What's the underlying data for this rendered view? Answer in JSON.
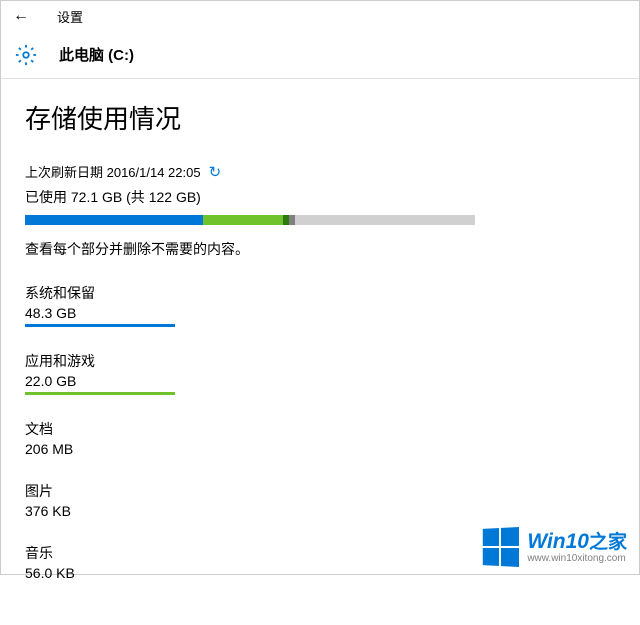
{
  "nav": {
    "back_symbol": "←",
    "title": "设置"
  },
  "header": {
    "title": "此电脑 (C:)"
  },
  "page": {
    "title": "存储使用情况",
    "refresh_label": "上次刷新日期 2016/1/14 22:05",
    "usage_text": "已使用 72.1 GB (共 122 GB)",
    "description": "查看每个部分并删除不需要的内容。"
  },
  "progress": {
    "total_width": 450,
    "segments": [
      {
        "color": "#0078d7",
        "width": 178
      },
      {
        "color": "#6fc22b",
        "width": 80
      },
      {
        "color": "#2e7a0e",
        "width": 6
      },
      {
        "color": "#808080",
        "width": 6
      }
    ],
    "background": "#d0d0d0"
  },
  "categories": [
    {
      "name": "系统和保留",
      "size": "48.3 GB",
      "bar_color": "#0078d7",
      "show_bar": true
    },
    {
      "name": "应用和游戏",
      "size": "22.0 GB",
      "bar_color": "#6fc22b",
      "show_bar": true
    },
    {
      "name": "文档",
      "size": "206 MB",
      "bar_color": "",
      "show_bar": false
    },
    {
      "name": "图片",
      "size": "376 KB",
      "bar_color": "",
      "show_bar": false
    },
    {
      "name": "音乐",
      "size": "56.0 KB",
      "bar_color": "",
      "show_bar": false
    }
  ],
  "watermark": {
    "title_en": "Win10",
    "title_zh": "之家",
    "url": "www.win10xitong.com",
    "logo_color": "#0078d7"
  }
}
